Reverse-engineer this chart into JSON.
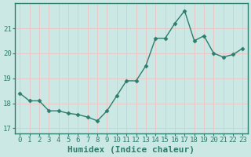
{
  "x": [
    0,
    1,
    2,
    3,
    4,
    5,
    6,
    7,
    8,
    9,
    10,
    11,
    12,
    13,
    14,
    15,
    16,
    17,
    18,
    19,
    20,
    21,
    22,
    23
  ],
  "y": [
    18.4,
    18.1,
    18.1,
    17.7,
    17.7,
    17.6,
    17.55,
    17.45,
    17.3,
    17.7,
    18.3,
    18.9,
    18.9,
    19.5,
    20.6,
    20.6,
    21.2,
    21.7,
    20.5,
    20.7,
    20.0,
    19.85,
    19.95,
    20.2
  ],
  "line_color": "#2d7d6e",
  "marker": "D",
  "marker_size": 2.5,
  "bg_color": "#cce8e4",
  "grid_color": "#e8c8c8",
  "xlabel": "Humidex (Indice chaleur)",
  "ylim": [
    16.8,
    22.0
  ],
  "xlim": [
    -0.5,
    23.5
  ],
  "yticks": [
    17,
    18,
    19,
    20,
    21
  ],
  "xticks": [
    0,
    1,
    2,
    3,
    4,
    5,
    6,
    7,
    8,
    9,
    10,
    11,
    12,
    13,
    14,
    15,
    16,
    17,
    18,
    19,
    20,
    21,
    22,
    23
  ],
  "tick_fontsize": 6.5,
  "xlabel_fontsize": 8,
  "linewidth": 1.0,
  "spine_color": "#2d7d6e",
  "tick_color": "#2d7d6e"
}
